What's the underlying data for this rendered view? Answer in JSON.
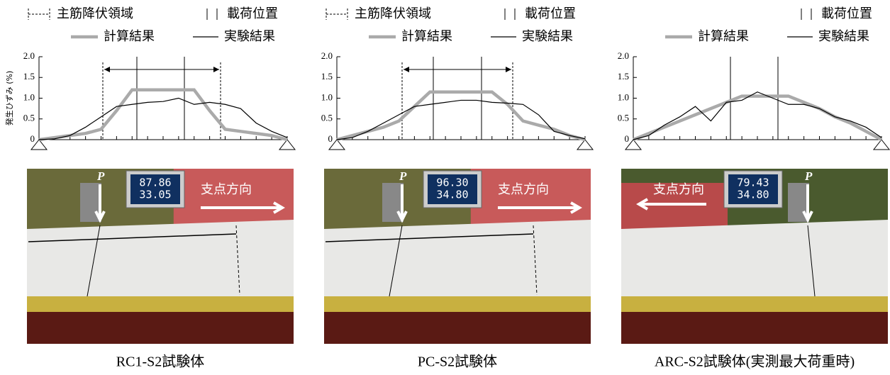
{
  "chart_data": [
    {
      "type": "line",
      "yield_region_label": "主筋降伏領域",
      "load_position_label": "載荷位置",
      "ylabel": "発生ひずみ (%)",
      "categories": [
        null,
        null,
        null,
        null,
        null,
        null,
        null,
        null,
        null,
        null,
        null,
        null,
        null,
        null,
        null,
        null,
        null
      ],
      "series": [
        {
          "name": "計算結果",
          "color": "#aaaaaa",
          "values": [
            0,
            0.05,
            0.1,
            0.15,
            0.25,
            0.7,
            1.2,
            1.2,
            1.2,
            1.2,
            1.2,
            0.7,
            0.25,
            0.2,
            0.15,
            0.1,
            0
          ]
        },
        {
          "name": "実験結果",
          "color": "#000000",
          "values": [
            0,
            0.02,
            0.1,
            0.3,
            0.55,
            0.8,
            0.85,
            0.9,
            0.92,
            1.0,
            0.85,
            0.9,
            0.85,
            0.75,
            0.4,
            0.2,
            0.05
          ]
        }
      ],
      "ylim": [
        0,
        2
      ],
      "yticks": [
        0,
        0.5,
        {
          "value": 1,
          "label": "1.0"
        },
        1.5,
        {
          "value": 2,
          "label": "2.0"
        }
      ],
      "photo": {
        "display": [
          "87.86",
          "33.05"
        ],
        "load_label": "P",
        "direction_label": "支点方向"
      },
      "caption": "RC1-S2試験体"
    },
    {
      "type": "line",
      "yield_region_label": "主筋降伏領域",
      "load_position_label": "載荷位置",
      "categories": [
        null,
        null,
        null,
        null,
        null,
        null,
        null,
        null,
        null,
        null,
        null,
        null,
        null,
        null,
        null,
        null,
        null
      ],
      "series": [
        {
          "name": "計算結果",
          "color": "#aaaaaa",
          "values": [
            0,
            0.1,
            0.2,
            0.3,
            0.45,
            0.8,
            1.15,
            1.15,
            1.15,
            1.15,
            1.15,
            0.85,
            0.45,
            0.35,
            0.25,
            0.1,
            0
          ]
        },
        {
          "name": "実験結果",
          "color": "#000000",
          "values": [
            0,
            0.05,
            0.2,
            0.4,
            0.6,
            0.8,
            0.85,
            0.9,
            0.95,
            0.95,
            0.9,
            0.88,
            0.85,
            0.6,
            0.2,
            0.1,
            0.02
          ]
        }
      ],
      "ylim": [
        0,
        2
      ],
      "yticks": [
        0,
        0.5,
        {
          "value": 1,
          "label": "1.0"
        },
        1.5,
        {
          "value": 2,
          "label": "2.0"
        }
      ],
      "photo": {
        "display": [
          "96.30",
          "34.80"
        ],
        "load_label": "P",
        "direction_label": "支点方向"
      },
      "caption": "PC-S2試験体"
    },
    {
      "type": "line",
      "load_position_label": "載荷位置",
      "categories": [
        null,
        null,
        null,
        null,
        null,
        null,
        null,
        null,
        null,
        null,
        null,
        null,
        null,
        null,
        null,
        null,
        null
      ],
      "series": [
        {
          "name": "計算結果",
          "color": "#aaaaaa",
          "values": [
            0,
            0.15,
            0.3,
            0.45,
            0.6,
            0.75,
            0.9,
            1.05,
            1.05,
            1.05,
            1.05,
            0.9,
            0.75,
            0.55,
            0.4,
            0.2,
            0
          ]
        },
        {
          "name": "実験結果",
          "color": "#000000",
          "values": [
            0,
            0.1,
            0.35,
            0.55,
            0.8,
            0.45,
            0.9,
            0.95,
            1.15,
            1.0,
            0.85,
            0.85,
            0.75,
            0.55,
            0.45,
            0.3,
            0.05
          ]
        }
      ],
      "ylim": [
        0,
        2
      ],
      "yticks": [
        0,
        0.5,
        {
          "value": 1,
          "label": "1.0"
        },
        1.5,
        {
          "value": 2,
          "label": "2.0"
        }
      ],
      "photo": {
        "display": [
          "79.43",
          "34.80"
        ],
        "load_label": "P",
        "direction_label": "支点方向"
      },
      "caption": "ARC-S2試験体(実測最大荷重時)"
    }
  ]
}
